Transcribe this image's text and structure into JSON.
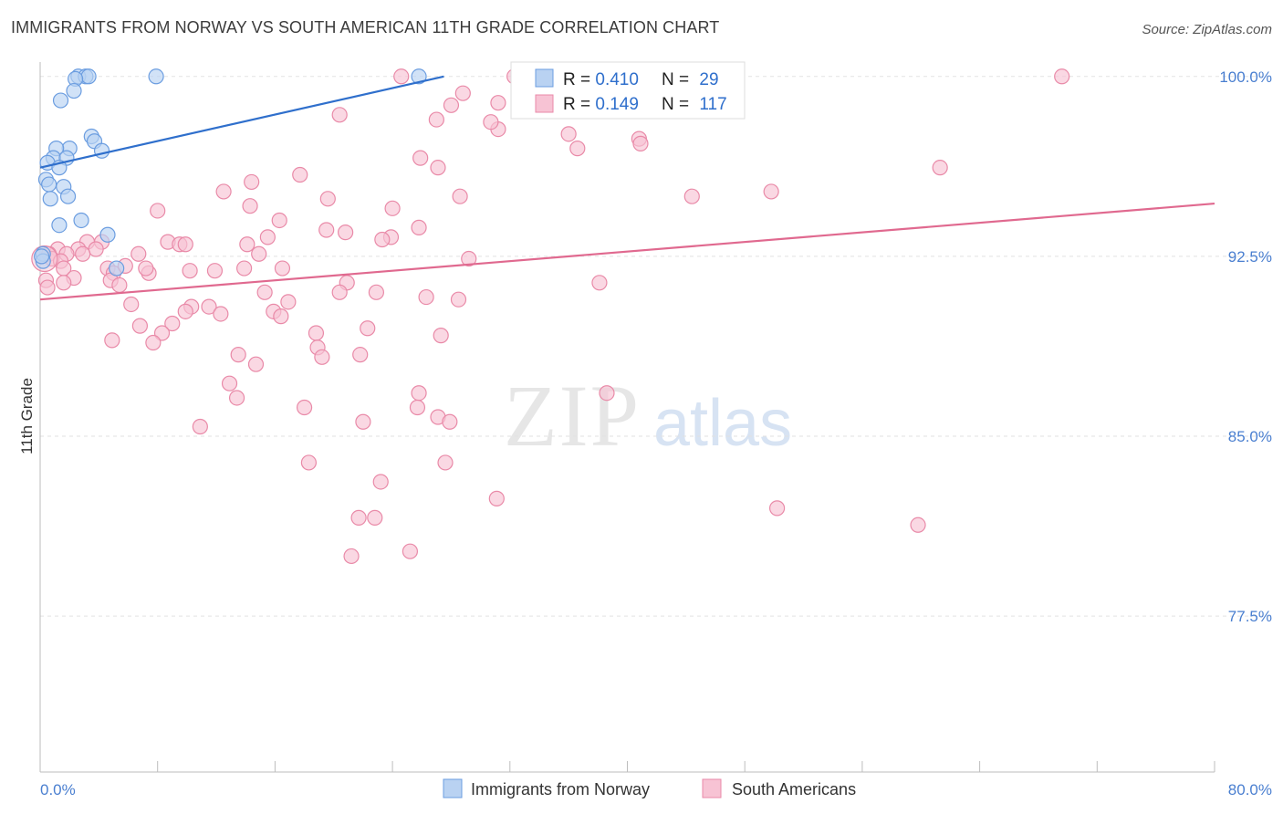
{
  "title": "IMMIGRANTS FROM NORWAY VS SOUTH AMERICAN 11TH GRADE CORRELATION CHART",
  "source": "Source: ZipAtlas.com",
  "watermark": {
    "zip": "ZIP",
    "atlas": "atlas"
  },
  "colors": {
    "blue_fill": "#b9d2f2",
    "blue_stroke": "#6b9de0",
    "blue_line": "#2f6fcc",
    "pink_fill": "#f7c3d4",
    "pink_stroke": "#e98aa8",
    "pink_line": "#e0698f",
    "axis_text": "#4a7fd0",
    "grid": "#e2e2e2"
  },
  "legend": {
    "rows": [
      {
        "r_label": "R = ",
        "r_value": "0.410",
        "n_label": "N = ",
        "n_value": "29",
        "series": "blue"
      },
      {
        "r_label": "R = ",
        "r_value": "0.149",
        "n_label": "N = ",
        "n_value": "117",
        "series": "pink"
      }
    ]
  },
  "bottom_legend": [
    "Immigrants from Norway",
    "South Americans"
  ],
  "chart_data": {
    "type": "scatter",
    "title": "IMMIGRANTS FROM NORWAY VS SOUTH AMERICAN 11TH GRADE CORRELATION CHART",
    "xlabel": "",
    "ylabel": "11th Grade",
    "xlim": [
      0,
      80
    ],
    "ylim": [
      71.0,
      100.6
    ],
    "x_tick_labels": [
      {
        "value": 0,
        "label": "0.0%"
      },
      {
        "value": 80,
        "label": "80.0%"
      }
    ],
    "y_ticks": [
      {
        "value": 100.0,
        "label": "100.0%"
      },
      {
        "value": 92.5,
        "label": "92.5%"
      },
      {
        "value": 85.0,
        "label": "85.0%"
      },
      {
        "value": 77.5,
        "label": "77.5%"
      }
    ],
    "series": [
      {
        "name": "Immigrants from Norway",
        "color": "blue",
        "trend": {
          "x": [
            0,
            27.5
          ],
          "y": [
            96.2,
            100.0
          ]
        },
        "points": [
          [
            2.6,
            100.0
          ],
          [
            3.1,
            100.0
          ],
          [
            3.3,
            100.0
          ],
          [
            7.9,
            100.0
          ],
          [
            25.8,
            100.0
          ],
          [
            2.4,
            99.9
          ],
          [
            2.3,
            99.4
          ],
          [
            1.4,
            99.0
          ],
          [
            3.5,
            97.5
          ],
          [
            3.7,
            97.3
          ],
          [
            4.2,
            96.9
          ],
          [
            2.0,
            97.0
          ],
          [
            1.1,
            97.0
          ],
          [
            0.9,
            96.6
          ],
          [
            1.8,
            96.6
          ],
          [
            0.5,
            96.4
          ],
          [
            1.3,
            96.2
          ],
          [
            0.4,
            95.7
          ],
          [
            0.6,
            95.5
          ],
          [
            1.6,
            95.4
          ],
          [
            0.7,
            94.9
          ],
          [
            1.9,
            95.0
          ],
          [
            1.3,
            93.8
          ],
          [
            2.8,
            94.0
          ],
          [
            4.6,
            93.4
          ],
          [
            5.2,
            92.0
          ],
          [
            0.2,
            92.6
          ],
          [
            0.2,
            92.3
          ],
          [
            0.1,
            92.5
          ]
        ]
      },
      {
        "name": "South Americans",
        "color": "pink",
        "trend": {
          "x": [
            0,
            80
          ],
          "y": [
            90.7,
            94.7
          ]
        },
        "points": [
          [
            24.6,
            100.0
          ],
          [
            32.3,
            100.0
          ],
          [
            39.5,
            100.0
          ],
          [
            69.6,
            100.0
          ],
          [
            28.8,
            99.3
          ],
          [
            28.0,
            98.8
          ],
          [
            27.0,
            98.2
          ],
          [
            20.4,
            98.4
          ],
          [
            31.2,
            97.8
          ],
          [
            30.7,
            98.1
          ],
          [
            36.0,
            97.6
          ],
          [
            36.6,
            97.0
          ],
          [
            40.8,
            97.4
          ],
          [
            40.9,
            97.2
          ],
          [
            25.9,
            96.6
          ],
          [
            27.1,
            96.2
          ],
          [
            61.3,
            96.2
          ],
          [
            17.7,
            95.9
          ],
          [
            14.4,
            95.6
          ],
          [
            12.5,
            95.2
          ],
          [
            28.6,
            95.0
          ],
          [
            19.6,
            94.9
          ],
          [
            44.4,
            95.0
          ],
          [
            49.8,
            95.2
          ],
          [
            14.3,
            94.6
          ],
          [
            24.0,
            94.5
          ],
          [
            8.0,
            94.4
          ],
          [
            16.3,
            94.0
          ],
          [
            25.8,
            93.7
          ],
          [
            19.5,
            93.6
          ],
          [
            20.8,
            93.5
          ],
          [
            15.5,
            93.3
          ],
          [
            23.9,
            93.3
          ],
          [
            23.3,
            93.2
          ],
          [
            14.1,
            93.0
          ],
          [
            8.7,
            93.1
          ],
          [
            9.5,
            93.0
          ],
          [
            9.9,
            93.0
          ],
          [
            3.2,
            93.1
          ],
          [
            4.2,
            93.1
          ],
          [
            2.6,
            92.8
          ],
          [
            3.8,
            92.8
          ],
          [
            1.2,
            92.8
          ],
          [
            1.8,
            92.6
          ],
          [
            2.9,
            92.6
          ],
          [
            0.6,
            92.6
          ],
          [
            0.8,
            92.4
          ],
          [
            1.4,
            92.3
          ],
          [
            1.6,
            92.0
          ],
          [
            6.7,
            92.6
          ],
          [
            14.9,
            92.6
          ],
          [
            29.2,
            92.4
          ],
          [
            4.6,
            92.0
          ],
          [
            5.0,
            91.8
          ],
          [
            5.8,
            92.1
          ],
          [
            10.2,
            91.9
          ],
          [
            11.9,
            91.9
          ],
          [
            13.9,
            92.0
          ],
          [
            16.5,
            92.0
          ],
          [
            7.4,
            91.8
          ],
          [
            2.3,
            91.6
          ],
          [
            0.4,
            91.5
          ],
          [
            1.6,
            91.4
          ],
          [
            0.5,
            91.2
          ],
          [
            4.8,
            91.5
          ],
          [
            5.4,
            91.3
          ],
          [
            20.9,
            91.4
          ],
          [
            20.4,
            91.0
          ],
          [
            15.3,
            91.0
          ],
          [
            22.9,
            91.0
          ],
          [
            26.3,
            90.8
          ],
          [
            28.5,
            90.7
          ],
          [
            38.1,
            91.4
          ],
          [
            16.9,
            90.6
          ],
          [
            6.2,
            90.5
          ],
          [
            10.3,
            90.4
          ],
          [
            9.9,
            90.2
          ],
          [
            11.5,
            90.4
          ],
          [
            12.3,
            90.1
          ],
          [
            15.9,
            90.2
          ],
          [
            16.4,
            90.0
          ],
          [
            6.8,
            89.6
          ],
          [
            9.0,
            89.7
          ],
          [
            8.3,
            89.3
          ],
          [
            22.3,
            89.5
          ],
          [
            18.8,
            89.3
          ],
          [
            27.3,
            89.2
          ],
          [
            4.9,
            89.0
          ],
          [
            7.7,
            88.9
          ],
          [
            18.9,
            88.7
          ],
          [
            19.2,
            88.3
          ],
          [
            21.8,
            88.4
          ],
          [
            13.5,
            88.4
          ],
          [
            14.7,
            88.0
          ],
          [
            12.9,
            87.2
          ],
          [
            13.4,
            86.6
          ],
          [
            25.8,
            86.8
          ],
          [
            38.6,
            86.8
          ],
          [
            25.7,
            86.2
          ],
          [
            18.0,
            86.2
          ],
          [
            27.1,
            85.8
          ],
          [
            27.9,
            85.6
          ],
          [
            22.0,
            85.6
          ],
          [
            10.9,
            85.4
          ],
          [
            18.3,
            83.9
          ],
          [
            27.6,
            83.9
          ],
          [
            23.2,
            83.1
          ],
          [
            31.1,
            82.4
          ],
          [
            50.2,
            82.0
          ],
          [
            21.7,
            81.6
          ],
          [
            22.8,
            81.6
          ],
          [
            59.8,
            81.3
          ],
          [
            25.2,
            80.2
          ],
          [
            21.2,
            80.0
          ],
          [
            7.2,
            92.0
          ],
          [
            31.2,
            98.9
          ]
        ]
      }
    ]
  }
}
